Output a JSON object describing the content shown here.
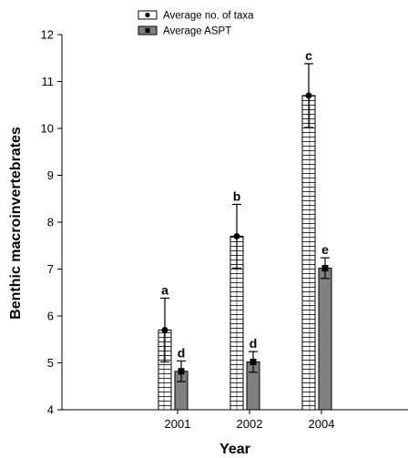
{
  "chart_data": {
    "type": "bar",
    "xlabel": "Year",
    "ylabel": "Benthic macroinvertebrates",
    "ylim": [
      4,
      12
    ],
    "yticks": [
      "4",
      "5",
      "6",
      "7",
      "8",
      "9",
      "10",
      "11",
      "12"
    ],
    "categories": [
      "2001",
      "2002",
      "2004"
    ],
    "grid": false,
    "legend_position": "top",
    "series": [
      {
        "name": "Average no. of taxa",
        "values": [
          5.7,
          7.7,
          10.7
        ],
        "errors": [
          0.68,
          0.68,
          0.68
        ],
        "letters": [
          "a",
          "b",
          "c"
        ],
        "pattern": "horizontal-hatch",
        "color": "#ffffff"
      },
      {
        "name": "Average ASPT",
        "values": [
          4.82,
          5.02,
          7.02
        ],
        "errors": [
          0.22,
          0.22,
          0.22
        ],
        "letters": [
          "d",
          "d",
          "e"
        ],
        "pattern": "solid",
        "color": "#808080"
      }
    ]
  }
}
